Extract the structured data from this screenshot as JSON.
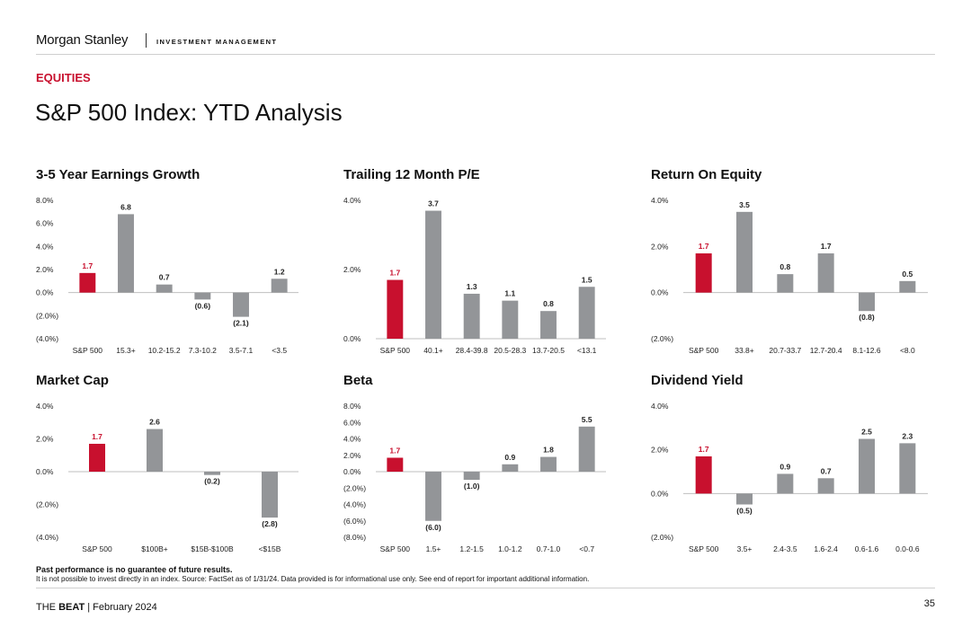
{
  "header": {
    "brand": "Morgan Stanley",
    "division": "INVESTMENT MANAGEMENT"
  },
  "section_label": "EQUITIES",
  "page_title": "S&P 500 Index: YTD Analysis",
  "colors": {
    "accent": "#c8102e",
    "bar": "#939598",
    "axis": "#bfbfbf"
  },
  "chart_data": [
    {
      "type": "bar",
      "title": "3-5 Year Earnings Growth",
      "categories": [
        "S&P 500",
        "15.3+",
        "10.2-15.2",
        "7.3-10.2",
        "3.5-7.1",
        "<3.5"
      ],
      "values": [
        1.7,
        6.8,
        0.7,
        -0.6,
        -2.1,
        1.2
      ],
      "value_labels": [
        "1.7",
        "6.8",
        "0.7",
        "(0.6)",
        "(2.1)",
        "1.2"
      ],
      "yticks": [
        8,
        6,
        4,
        2,
        0,
        -2,
        -4
      ],
      "ytick_labels": [
        "8.0%",
        "6.0%",
        "4.0%",
        "2.0%",
        "0.0%",
        "(2.0%)",
        "(4.0%)"
      ],
      "ylim": [
        -4,
        8
      ],
      "highlight_index": 0
    },
    {
      "type": "bar",
      "title": "Trailing 12 Month P/E",
      "categories": [
        "S&P 500",
        "40.1+",
        "28.4-39.8",
        "20.5-28.3",
        "13.7-20.5",
        "<13.1"
      ],
      "values": [
        1.7,
        3.7,
        1.3,
        1.1,
        0.8,
        1.5
      ],
      "value_labels": [
        "1.7",
        "3.7",
        "1.3",
        "1.1",
        "0.8",
        "1.5"
      ],
      "yticks": [
        4,
        2,
        0
      ],
      "ytick_labels": [
        "4.0%",
        "2.0%",
        "0.0%"
      ],
      "ylim": [
        0,
        4
      ],
      "highlight_index": 0
    },
    {
      "type": "bar",
      "title": "Return On Equity",
      "categories": [
        "S&P 500",
        "33.8+",
        "20.7-33.7",
        "12.7-20.4",
        "8.1-12.6",
        "<8.0"
      ],
      "values": [
        1.7,
        3.5,
        0.8,
        1.7,
        -0.8,
        0.5
      ],
      "value_labels": [
        "1.7",
        "3.5",
        "0.8",
        "1.7",
        "(0.8)",
        "0.5"
      ],
      "yticks": [
        4,
        2,
        0,
        -2
      ],
      "ytick_labels": [
        "4.0%",
        "2.0%",
        "0.0%",
        "(2.0%)"
      ],
      "ylim": [
        -2,
        4
      ],
      "highlight_index": 0
    },
    {
      "type": "bar",
      "title": "Market Cap",
      "categories": [
        "S&P 500",
        "$100B+",
        "$15B-$100B",
        "<$15B"
      ],
      "values": [
        1.7,
        2.6,
        -0.2,
        -2.8
      ],
      "value_labels": [
        "1.7",
        "2.6",
        "(0.2)",
        "(2.8)"
      ],
      "yticks": [
        4,
        2,
        0,
        -2,
        -4
      ],
      "ytick_labels": [
        "4.0%",
        "2.0%",
        "0.0%",
        "(2.0%)",
        "(4.0%)"
      ],
      "ylim": [
        -4,
        4
      ],
      "highlight_index": 0
    },
    {
      "type": "bar",
      "title": "Beta",
      "categories": [
        "S&P 500",
        "1.5+",
        "1.2-1.5",
        "1.0-1.2",
        "0.7-1.0",
        "<0.7"
      ],
      "values": [
        1.7,
        -6.0,
        -1.0,
        0.9,
        1.8,
        5.5
      ],
      "value_labels": [
        "1.7",
        "(6.0)",
        "(1.0)",
        "0.9",
        "1.8",
        "5.5"
      ],
      "yticks": [
        8,
        6,
        4,
        2,
        0,
        -2,
        -4,
        -6,
        -8
      ],
      "ytick_labels": [
        "8.0%",
        "6.0%",
        "4.0%",
        "2.0%",
        "0.0%",
        "(2.0%)",
        "(4.0%)",
        "(6.0%)",
        "(8.0%)"
      ],
      "ylim": [
        -8,
        8
      ],
      "highlight_index": 0
    },
    {
      "type": "bar",
      "title": "Dividend Yield",
      "categories": [
        "S&P 500",
        "3.5+",
        "2.4-3.5",
        "1.6-2.4",
        "0.6-1.6",
        "0.0-0.6"
      ],
      "values": [
        1.7,
        -0.5,
        0.9,
        0.7,
        2.5,
        2.3
      ],
      "value_labels": [
        "1.7",
        "(0.5)",
        "0.9",
        "0.7",
        "2.5",
        "2.3"
      ],
      "yticks": [
        4,
        2,
        0,
        -2
      ],
      "ytick_labels": [
        "4.0%",
        "2.0%",
        "0.0%",
        "(2.0%)"
      ],
      "ylim": [
        -2,
        4
      ],
      "highlight_index": 0
    }
  ],
  "disclaimer": {
    "bold": "Past performance is no guarantee of future results.",
    "text": "It is not possible to invest directly in an index. Source: FactSet as of 1/31/24. Data provided is for informational use only. See end of report for important additional information."
  },
  "footer": {
    "publication_prefix": "THE ",
    "publication_name": "BEAT",
    "date": " | February 2024",
    "page_number": "35"
  }
}
